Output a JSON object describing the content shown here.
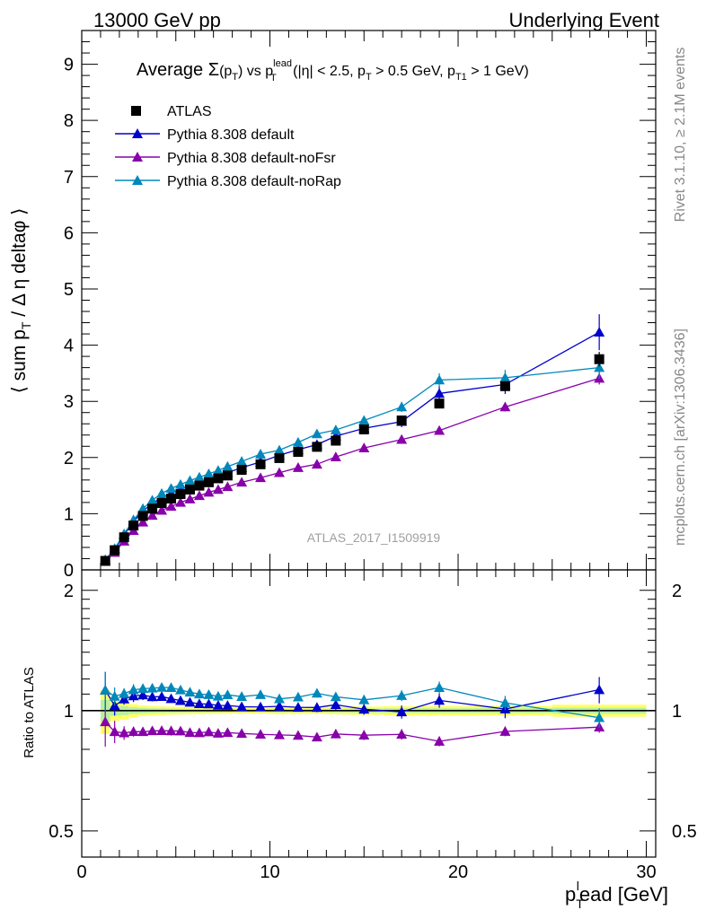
{
  "header": {
    "left": "13000 GeV pp",
    "right": "Underlying Event"
  },
  "side_labels": {
    "rivet": "Rivet 3.1.10, ≥ 2.1M events",
    "mcplots": "mcplots.cern.ch [arXiv:1306.3436]"
  },
  "watermark": "ATLAS_2017_I1509919",
  "chart_data": {
    "type": "scatter",
    "title": {
      "prefix": "Average ",
      "sigma": "Σ",
      "arg_open": "(p",
      "arg_sub": "T",
      "arg_close": ")",
      "vs": " vs p",
      "vs_sup": "lead",
      "vs_sub": "T",
      "cuts_a": " (|η| < 2.5, p",
      "cuts_a_sub": "T",
      "cuts_b": " > 0.5 GeV, p",
      "cuts_b_sub": "T1",
      "cuts_c": " > 1 GeV)"
    },
    "xlabel": {
      "main": "p",
      "sub": "T",
      "sup": "l",
      "rest": "ead [GeV]"
    },
    "ylabel": {
      "a": "⟨ sum p",
      "sub": "T",
      "b": " / Δ η deltaφ ⟩"
    },
    "ratio_ylabel": "Ratio to ATLAS",
    "xlim": [
      0,
      30.5
    ],
    "ylim": [
      0,
      9.6
    ],
    "ratio_ylim": [
      0.43,
      2.25
    ],
    "ratio_log_scale": true,
    "x_ticks": [
      0,
      10,
      20,
      30
    ],
    "x_tick_labels": [
      "0",
      "10",
      "20",
      "30"
    ],
    "y_ticks": [
      0,
      1,
      2,
      3,
      4,
      5,
      6,
      7,
      8,
      9
    ],
    "y_tick_labels": [
      "0",
      "1",
      "2",
      "3",
      "4",
      "5",
      "6",
      "7",
      "8",
      "9"
    ],
    "ratio_ticks": [
      0.5,
      1,
      2
    ],
    "ratio_tick_labels": [
      "0.5",
      "1",
      "2"
    ],
    "legend_position": "top-left",
    "x": [
      1.25,
      1.75,
      2.25,
      2.75,
      3.25,
      3.75,
      4.25,
      4.75,
      5.25,
      5.75,
      6.25,
      6.75,
      7.25,
      7.75,
      8.5,
      9.5,
      10.5,
      11.5,
      12.5,
      13.5,
      15,
      17,
      19,
      22.5,
      27.5
    ],
    "data": {
      "name": "ATLAS",
      "color": "#000000",
      "y": [
        0.16,
        0.35,
        0.58,
        0.79,
        0.96,
        1.09,
        1.19,
        1.27,
        1.35,
        1.43,
        1.5,
        1.56,
        1.63,
        1.68,
        1.78,
        1.88,
        1.99,
        2.1,
        2.19,
        2.3,
        2.5,
        2.66,
        2.96,
        3.27,
        3.75
      ],
      "err": [
        0.02,
        0.02,
        0.03,
        0.03,
        0.03,
        0.03,
        0.03,
        0.03,
        0.03,
        0.03,
        0.03,
        0.03,
        0.03,
        0.03,
        0.03,
        0.03,
        0.04,
        0.04,
        0.04,
        0.05,
        0.06,
        0.07,
        0.08,
        0.09,
        0.13
      ]
    },
    "band_color": "#ffff66",
    "band_inner_color": "#b8f0a0",
    "series": [
      {
        "name": "Pythia 8.308 default",
        "color": "#0000cc",
        "y": [
          0.18,
          0.36,
          0.62,
          0.86,
          1.05,
          1.18,
          1.29,
          1.36,
          1.43,
          1.5,
          1.56,
          1.62,
          1.68,
          1.73,
          1.82,
          1.92,
          2.04,
          2.14,
          2.23,
          2.38,
          2.52,
          2.64,
          3.14,
          3.3,
          4.23
        ],
        "err": [
          0.02,
          0.02,
          0.02,
          0.03,
          0.03,
          0.03,
          0.03,
          0.03,
          0.03,
          0.03,
          0.03,
          0.03,
          0.04,
          0.04,
          0.04,
          0.04,
          0.05,
          0.05,
          0.06,
          0.07,
          0.08,
          0.1,
          0.13,
          0.17,
          0.32
        ]
      },
      {
        "name": "Pythia 8.308 default-noFsr",
        "color": "#8800aa",
        "y": [
          0.15,
          0.31,
          0.51,
          0.7,
          0.85,
          0.97,
          1.06,
          1.13,
          1.2,
          1.26,
          1.32,
          1.38,
          1.43,
          1.48,
          1.56,
          1.64,
          1.73,
          1.82,
          1.88,
          2.01,
          2.17,
          2.32,
          2.48,
          2.9,
          3.41
        ],
        "err": [
          0.02,
          0.02,
          0.02,
          0.02,
          0.02,
          0.02,
          0.02,
          0.03,
          0.03,
          0.03,
          0.03,
          0.03,
          0.03,
          0.03,
          0.03,
          0.03,
          0.04,
          0.04,
          0.04,
          0.05,
          0.06,
          0.07,
          0.07,
          0.08,
          0.11
        ]
      },
      {
        "name": "Pythia 8.308 default-noRap",
        "color": "#0088bb",
        "y": [
          0.18,
          0.38,
          0.64,
          0.89,
          1.09,
          1.24,
          1.36,
          1.45,
          1.52,
          1.59,
          1.65,
          1.71,
          1.77,
          1.84,
          1.93,
          2.06,
          2.13,
          2.27,
          2.42,
          2.49,
          2.66,
          2.9,
          3.38,
          3.42,
          3.6
        ],
        "err": [
          0.02,
          0.02,
          0.02,
          0.03,
          0.03,
          0.03,
          0.03,
          0.03,
          0.03,
          0.03,
          0.03,
          0.03,
          0.04,
          0.04,
          0.04,
          0.04,
          0.05,
          0.05,
          0.06,
          0.06,
          0.07,
          0.09,
          0.12,
          0.14,
          0.2
        ]
      }
    ]
  }
}
